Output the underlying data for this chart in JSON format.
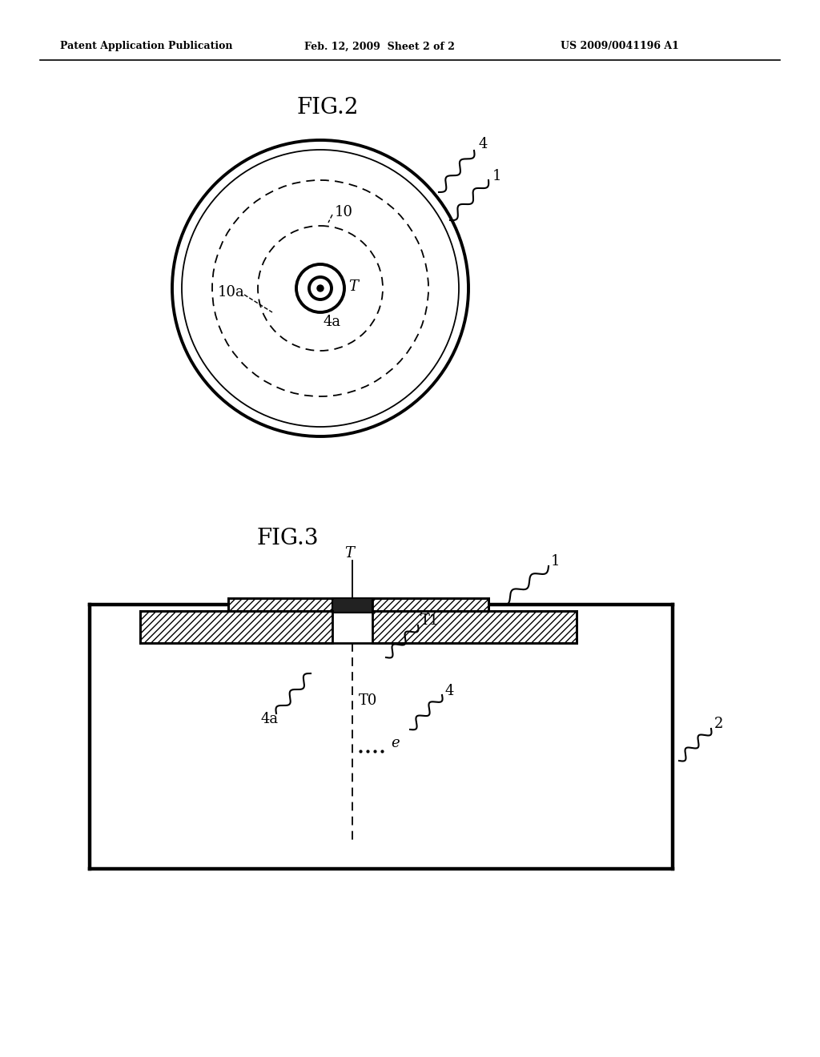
{
  "background_color": "#ffffff",
  "header_left": "Patent Application Publication",
  "header_center": "Feb. 12, 2009  Sheet 2 of 2",
  "header_right": "US 2009/0041196 A1",
  "fig2_title": "FIG.2",
  "fig3_title": "FIG.3",
  "text_color": "#000000",
  "line_color": "#000000"
}
